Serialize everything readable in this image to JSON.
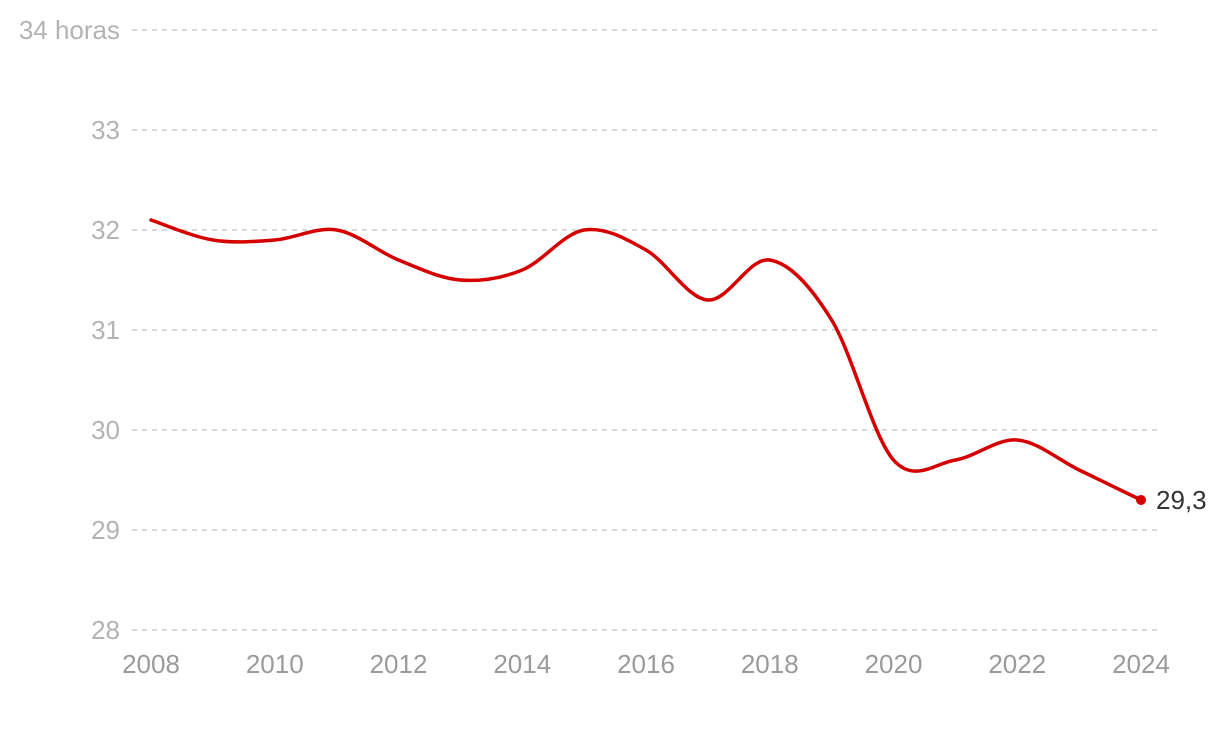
{
  "colors": {
    "line": "#d40000",
    "grid": "#cccccc"
  },
  "chart_data": {
    "type": "line",
    "y_tick_labels": [
      "34 horas",
      "33",
      "32",
      "31",
      "30",
      "29",
      "28"
    ],
    "x_tick_labels": [
      "2008",
      "2010",
      "2012",
      "2014",
      "2016",
      "2018",
      "2020",
      "2022",
      "2024"
    ],
    "ylim": [
      28,
      34
    ],
    "xlim": [
      2008,
      2024
    ],
    "grid": true,
    "series": [
      {
        "x": [
          2008,
          2009,
          2010,
          2011,
          2012,
          2013,
          2014,
          2015,
          2016,
          2017,
          2018,
          2019,
          2020,
          2021,
          2022,
          2023,
          2024
        ],
        "values": [
          32.1,
          31.9,
          31.9,
          32.0,
          31.7,
          31.5,
          31.6,
          32.0,
          31.8,
          31.3,
          31.7,
          31.1,
          29.7,
          29.7,
          29.9,
          29.6,
          29.3
        ]
      }
    ],
    "end_label": "29,3"
  }
}
